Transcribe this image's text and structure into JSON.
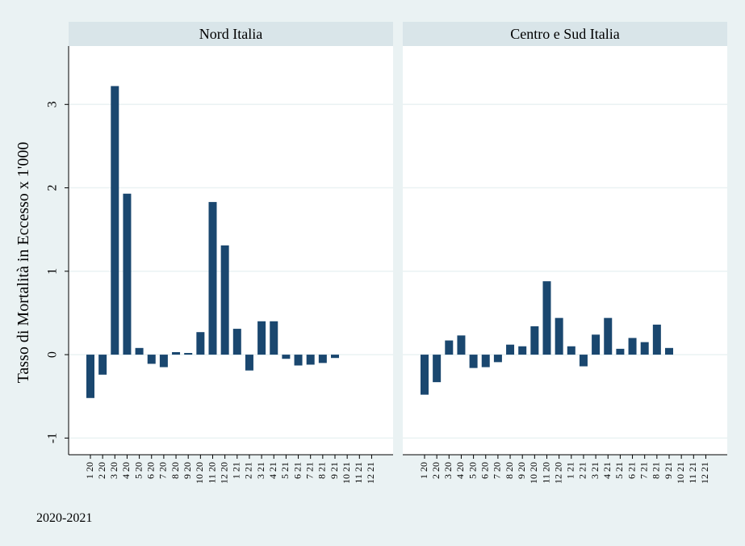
{
  "ylabel": "Tasso di Mortalità in Eccesso x 1'000",
  "note": "2020-2021",
  "colors": {
    "background": "#eaf2f3",
    "plot_background": "#ffffff",
    "strip": "#d9e5e9",
    "bar": "#1a476f",
    "grid": "#eaf2f3",
    "axis": "#000000"
  },
  "chart_data": {
    "type": "bar",
    "ylim": [
      -1.2,
      3.7
    ],
    "yticks": [
      -1,
      0,
      1,
      2,
      3
    ],
    "grid": true,
    "categories": [
      "1 20",
      "2 20",
      "3 20",
      "4 20",
      "5 20",
      "6 20",
      "7 20",
      "8 20",
      "9 20",
      "10 20",
      "11 20",
      "12 20",
      "1 21",
      "2 21",
      "3 21",
      "4 21",
      "5 21",
      "6 21",
      "7 21",
      "8 21",
      "9 21",
      "10 21",
      "11 21",
      "12 21"
    ],
    "panels": [
      {
        "title": "Nord Italia",
        "values": [
          -0.52,
          -0.24,
          3.22,
          1.93,
          0.08,
          -0.11,
          -0.15,
          0.03,
          0.02,
          0.27,
          1.83,
          1.31,
          0.31,
          -0.19,
          0.4,
          0.4,
          -0.05,
          -0.13,
          -0.12,
          -0.1,
          -0.04,
          null,
          null,
          null
        ]
      },
      {
        "title": "Centro e Sud Italia",
        "values": [
          -0.48,
          -0.33,
          0.17,
          0.23,
          -0.16,
          -0.15,
          -0.09,
          0.12,
          0.1,
          0.34,
          0.88,
          0.44,
          0.1,
          -0.14,
          0.24,
          0.44,
          0.07,
          0.2,
          0.15,
          0.36,
          0.08,
          null,
          null,
          null
        ]
      }
    ]
  }
}
